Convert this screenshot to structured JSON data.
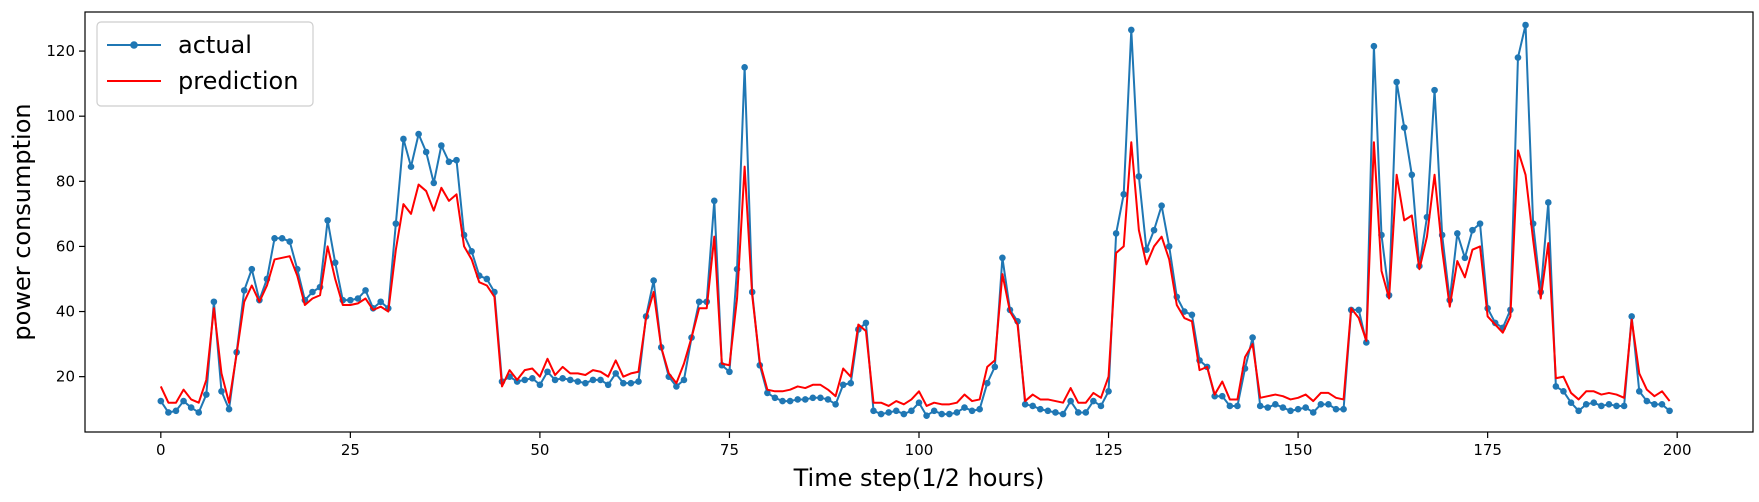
{
  "chart_data": {
    "type": "line",
    "title": "",
    "xlabel": "Time step(1/2 hours)",
    "ylabel": "power consumption",
    "xlim": [
      -10,
      210
    ],
    "ylim": [
      3,
      132
    ],
    "xticks": [
      0,
      25,
      50,
      75,
      100,
      125,
      150,
      175,
      200
    ],
    "yticks": [
      20,
      40,
      60,
      80,
      100,
      120
    ],
    "grid": false,
    "legend_position": "top-left",
    "series": [
      {
        "name": "actual",
        "color": "#1f77b4",
        "marker": "circle",
        "values": [
          12.5,
          9,
          9.5,
          12.5,
          10.5,
          9,
          14.5,
          43,
          15.5,
          10,
          27.5,
          46.5,
          53,
          43.5,
          50,
          62.5,
          62.5,
          61.5,
          53,
          43.5,
          46,
          47.5,
          68,
          55,
          43.5,
          43.5,
          44,
          46.5,
          41,
          43,
          41,
          67,
          93,
          84.5,
          94.5,
          89,
          79.5,
          91,
          86,
          86.5,
          63.5,
          58.5,
          51,
          50,
          46,
          18.5,
          20,
          18.5,
          19,
          19.5,
          17.5,
          21.5,
          19,
          19.5,
          19,
          18.5,
          18,
          19,
          19,
          17.5,
          21,
          18,
          18,
          18.5,
          38.5,
          49.5,
          29,
          20,
          17,
          19,
          32,
          43,
          43,
          74,
          23.5,
          21.5,
          53,
          115,
          46,
          23.5,
          15,
          13.5,
          12.5,
          12.5,
          13,
          13,
          13.5,
          13.5,
          13,
          11.5,
          17.5,
          18,
          34.5,
          36.5,
          9.5,
          8.5,
          9,
          9.5,
          8.5,
          9.5,
          12,
          8,
          9.5,
          8.5,
          8.5,
          9,
          10.5,
          9.5,
          10,
          18,
          23,
          56.5,
          40.5,
          37,
          11.5,
          11,
          10,
          9.5,
          9,
          8.5,
          12.5,
          9,
          9,
          12.5,
          11,
          15.5,
          64,
          76,
          126.5,
          81.5,
          59,
          65,
          72.5,
          60,
          44.5,
          40,
          39,
          25,
          23,
          14,
          14,
          11,
          11,
          22.5,
          32,
          11,
          10.5,
          11.5,
          10.5,
          9.5,
          10,
          10.5,
          9,
          11.5,
          11.5,
          10,
          10,
          40.5,
          40.5,
          30.5,
          121.5,
          63.5,
          45,
          110.5,
          96.5,
          82,
          54,
          69,
          108,
          63.5,
          43.5,
          64,
          56.5,
          65,
          67,
          41,
          36.5,
          35,
          40.5,
          118,
          128,
          67,
          46,
          73.5,
          17,
          15.5,
          12,
          9.5,
          11.5,
          12,
          11,
          11.5,
          11,
          11,
          38.5,
          15.5,
          12.5,
          11.5,
          11.5,
          9.5
        ]
      },
      {
        "name": "prediction",
        "color": "#ff0000",
        "marker": "none",
        "values": [
          17,
          12,
          12,
          16,
          13,
          12,
          19,
          41,
          21,
          12,
          27,
          43,
          48,
          43,
          48,
          56,
          56.5,
          57,
          51,
          42,
          44,
          45,
          60,
          50,
          42,
          42,
          42.5,
          44,
          40.5,
          41.5,
          40,
          59,
          73,
          70,
          79,
          77,
          71,
          78,
          74,
          76,
          60,
          56,
          49,
          48,
          44.5,
          17,
          22,
          19,
          22,
          22.5,
          20,
          25.5,
          20.5,
          23,
          21,
          21,
          20.5,
          22,
          21.5,
          20,
          25,
          20,
          21,
          21.5,
          38,
          46,
          29,
          21,
          18,
          24,
          32,
          41,
          41,
          63,
          24,
          23.5,
          44,
          84.5,
          45,
          24.5,
          16,
          15.5,
          15.5,
          16,
          17,
          16.5,
          17.5,
          17.5,
          16,
          14,
          22.5,
          20,
          36,
          34,
          12,
          12,
          11,
          12.5,
          11.5,
          13,
          15.5,
          11,
          12,
          11.5,
          11.5,
          12,
          14.5,
          12.5,
          13,
          23,
          25,
          51.5,
          40,
          36,
          12.5,
          14.5,
          13,
          13,
          12.5,
          12,
          16.5,
          12,
          12,
          15,
          13.5,
          20,
          58,
          60,
          92,
          65,
          54.5,
          60,
          63,
          56,
          42,
          38,
          37,
          22,
          23,
          14.5,
          18.5,
          13,
          13,
          26,
          30,
          13.5,
          14,
          14.5,
          14,
          13,
          13.5,
          14.5,
          12.5,
          15,
          15,
          13.5,
          13,
          41,
          38,
          31,
          92,
          52.5,
          44,
          82,
          68,
          69.5,
          53,
          63,
          82,
          59,
          41.5,
          55.5,
          50.5,
          59,
          60,
          38.5,
          36,
          33.5,
          38.5,
          89.5,
          82,
          62,
          44,
          61,
          19.5,
          20,
          15,
          13,
          15.5,
          15.5,
          14.5,
          15,
          14.5,
          13.5,
          37.5,
          21,
          16,
          14,
          15.5,
          12.5
        ]
      }
    ]
  }
}
